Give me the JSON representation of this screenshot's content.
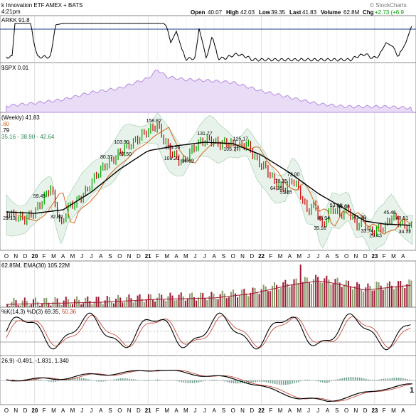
{
  "header": {
    "title": "k Innovation ETF  AMEX + BATS",
    "time": "4:21pm",
    "open_label": "Open",
    "open": "40.07",
    "high_label": "High",
    "high": "42.03",
    "low_label": "Low",
    "low": "39.35",
    "last_label": "Last",
    "last": "41.83",
    "volume_label": "Volume",
    "volume": "62.8M",
    "chg_label": "Chg",
    "chg": "+2.73 (+6.9",
    "watermark": "© StockCharts"
  },
  "panels": {
    "arkk_spx_cor": {
      "label": "ARKK 91.8",
      "color": "#000000"
    },
    "arkk_spx": {
      "label": "$SPX 0.01",
      "color": "#c8a6e8"
    },
    "price": {
      "label": "(Weekly) 41.83",
      "ma1": ".60",
      "ma1_color": "#d2691e",
      "ma2": ".79",
      "ma2_color": "#000000",
      "bb": "35.16 - 38.90 - 42.64",
      "bb_color": "#2e8b57"
    },
    "volume": {
      "label": "62.85M, EMA(30) 105.22M"
    },
    "stoch": {
      "label": "%K(14,3) %D(3) 69.35, 50.36",
      "k": "69.35",
      "d": "50.36"
    },
    "macd": {
      "label": "26,9) -0.491, -1.831, 1.340"
    }
  },
  "colors": {
    "up": "#00a000",
    "down": "#cc0000",
    "bb_fill": "#e8f3ec",
    "vol_up": "#8b9b6b",
    "vol_down": "#9e1b36"
  },
  "chart_data": {
    "type": "candlestick",
    "x_month_labels": [
      "O",
      "N",
      "D",
      "20",
      "F",
      "M",
      "A",
      "M",
      "J",
      "J",
      "A",
      "S",
      "O",
      "N",
      "D",
      "21",
      "F",
      "M",
      "A",
      "M",
      "J",
      "J",
      "A",
      "S",
      "O",
      "N",
      "D",
      "22",
      "F",
      "M",
      "A",
      "M",
      "J",
      "J",
      "A",
      "S",
      "O",
      "N",
      "D",
      "23",
      "F",
      "M",
      "A"
    ],
    "year_labels": [
      "20",
      "21",
      "22",
      "23"
    ],
    "price_labels": [
      "29.13",
      "59.45",
      "32.30",
      "80.37",
      "87.50",
      "103.90",
      "158.82",
      "129.56",
      "108.21",
      "96.69",
      "131.77",
      "125.17",
      "105.77",
      "78.25",
      "72.00",
      "64.35",
      "51.85",
      "46.94",
      "35.10",
      "53.86",
      "45.68",
      "41.29",
      "33.74",
      "29.43",
      "45.46",
      "40.51",
      "34.72"
    ],
    "series": [
      {
        "name": "Weekly",
        "last": 41.83
      }
    ],
    "stoch_levels": [
      20,
      80
    ],
    "bottom_right_label": "1"
  }
}
